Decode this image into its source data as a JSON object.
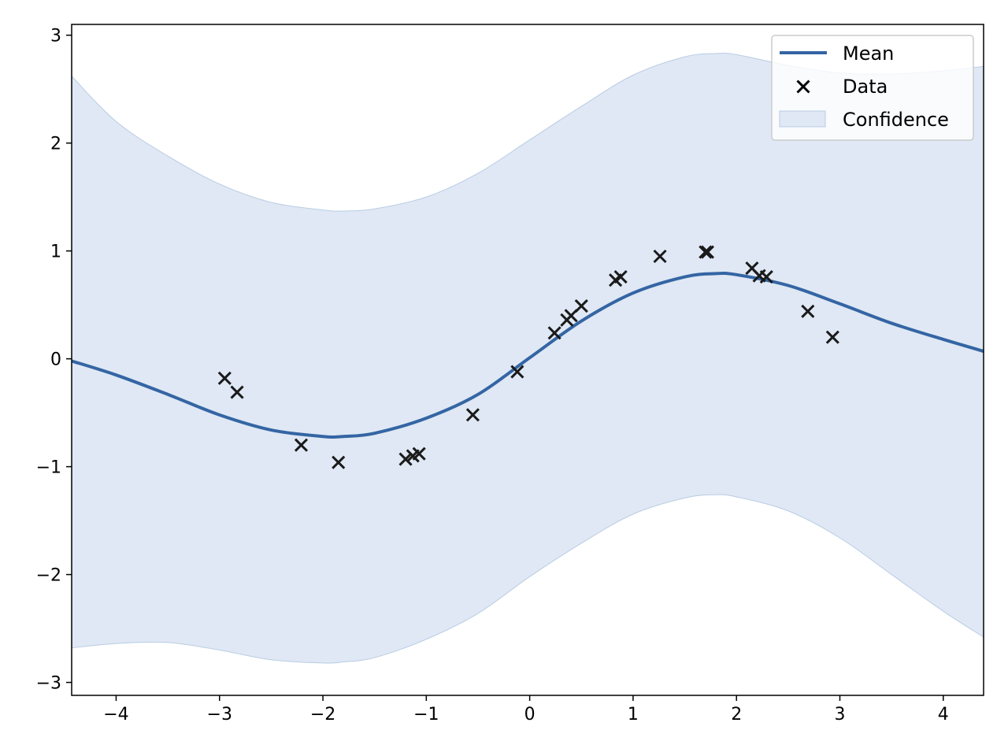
{
  "chart_data": {
    "type": "line",
    "title": "",
    "xlabel": "",
    "ylabel": "",
    "xlim": [
      -4.43,
      4.39
    ],
    "ylim": [
      -3.12,
      3.1
    ],
    "xticks": [
      -4,
      -3,
      -2,
      -1,
      0,
      1,
      2,
      3,
      4
    ],
    "xtick_labels": [
      "−4",
      "−3",
      "−2",
      "−1",
      "0",
      "1",
      "2",
      "3",
      "4"
    ],
    "yticks": [
      -3,
      -2,
      -1,
      0,
      1,
      2,
      3
    ],
    "ytick_labels": [
      "−3",
      "−2",
      "−1",
      "0",
      "1",
      "2",
      "3"
    ],
    "grid": false,
    "legend_position": "top-right",
    "colors": {
      "mean": "#3465a4",
      "confidence_fill": "#dfe8f4",
      "confidence_edge": "#b9cce3",
      "data_marker": "#1a1a1a"
    },
    "series": [
      {
        "name": "Mean",
        "kind": "line",
        "x": [
          -4.43,
          -4.0,
          -3.5,
          -3.0,
          -2.5,
          -2.0,
          -1.8,
          -1.5,
          -1.0,
          -0.5,
          0.0,
          0.5,
          1.0,
          1.5,
          1.8,
          2.0,
          2.5,
          3.0,
          3.5,
          4.0,
          4.39
        ],
        "y": [
          -0.02,
          -0.15,
          -0.33,
          -0.52,
          -0.66,
          -0.72,
          -0.72,
          -0.69,
          -0.55,
          -0.33,
          0.01,
          0.35,
          0.61,
          0.76,
          0.79,
          0.78,
          0.68,
          0.51,
          0.33,
          0.18,
          0.07
        ]
      },
      {
        "name": "Data",
        "kind": "scatter",
        "x": [
          -2.95,
          -2.83,
          -2.21,
          -1.85,
          -1.2,
          -1.13,
          -1.07,
          -0.55,
          -0.12,
          0.24,
          0.36,
          0.4,
          0.5,
          0.83,
          0.88,
          1.26,
          1.7,
          1.72,
          2.15,
          2.22,
          2.29,
          2.69,
          2.93
        ],
        "y": [
          -0.18,
          -0.31,
          -0.8,
          -0.96,
          -0.93,
          -0.9,
          -0.88,
          -0.52,
          -0.12,
          0.24,
          0.36,
          0.4,
          0.49,
          0.73,
          0.76,
          0.95,
          0.99,
          0.99,
          0.84,
          0.77,
          0.76,
          0.44,
          0.2
        ]
      },
      {
        "name": "Confidence",
        "kind": "band",
        "x": [
          -4.43,
          -4.0,
          -3.5,
          -3.0,
          -2.5,
          -2.0,
          -1.8,
          -1.5,
          -1.0,
          -0.5,
          0.0,
          0.5,
          1.0,
          1.5,
          1.8,
          2.0,
          2.5,
          3.0,
          3.5,
          4.0,
          4.39
        ],
        "upper": [
          2.62,
          2.2,
          1.88,
          1.62,
          1.45,
          1.38,
          1.37,
          1.39,
          1.5,
          1.72,
          2.03,
          2.34,
          2.63,
          2.8,
          2.83,
          2.82,
          2.72,
          2.65,
          2.64,
          2.67,
          2.71
        ],
        "lower": [
          -2.68,
          -2.64,
          -2.63,
          -2.7,
          -2.79,
          -2.82,
          -2.81,
          -2.77,
          -2.6,
          -2.36,
          -2.02,
          -1.71,
          -1.44,
          -1.29,
          -1.26,
          -1.28,
          -1.41,
          -1.66,
          -2.0,
          -2.34,
          -2.58
        ]
      }
    ]
  }
}
